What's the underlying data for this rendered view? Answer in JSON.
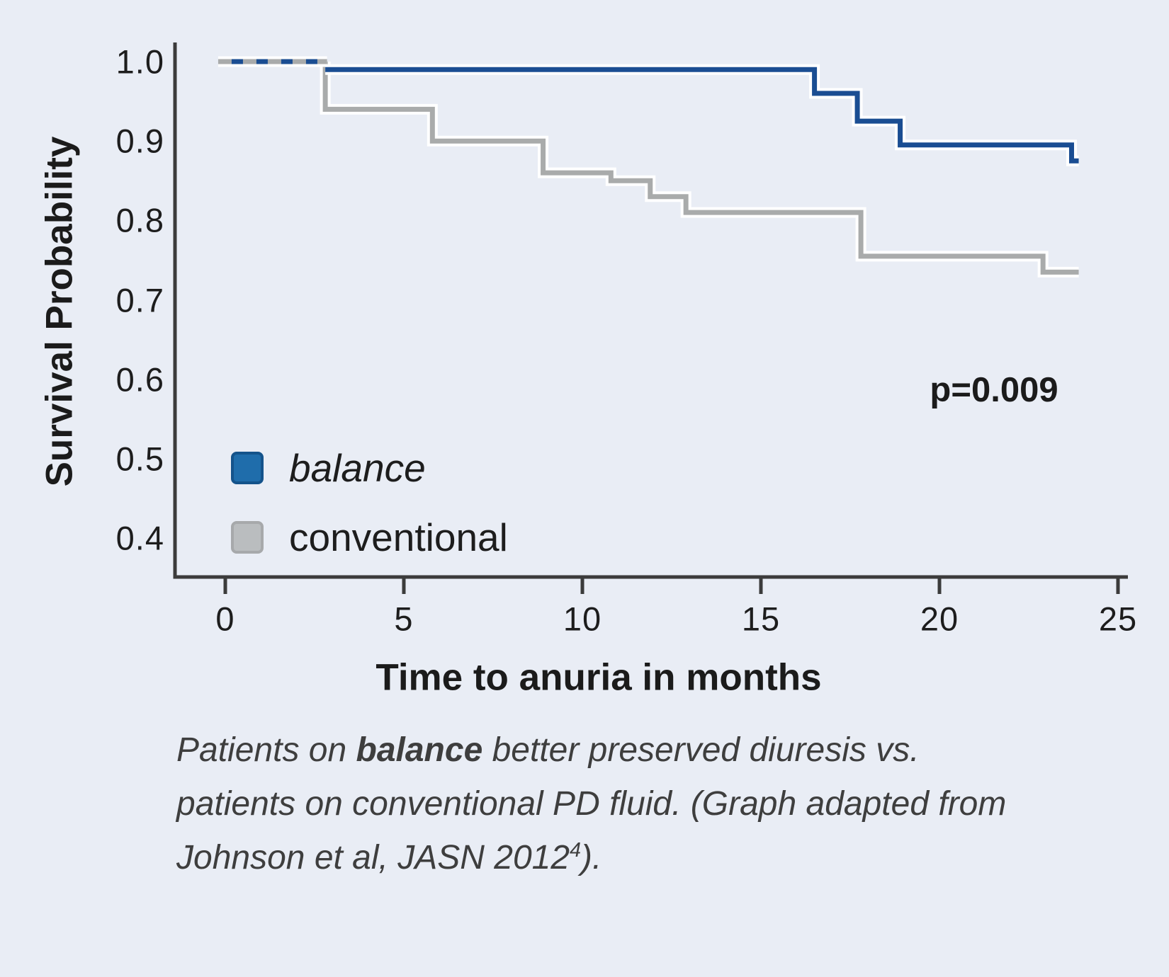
{
  "figure": {
    "background_color": "#e9edf5",
    "p_value_label": "p=0.009"
  },
  "chart_data": {
    "type": "line",
    "subtype": "kaplan-meier-step-curves",
    "title": "",
    "xlabel": "Time to anuria in months",
    "ylabel": "Survival Probability",
    "xlim": [
      0,
      25
    ],
    "x_ticks": [
      0,
      5,
      10,
      15,
      20,
      25
    ],
    "x_tick_labels": [
      "0",
      "5",
      "10",
      "15",
      "20",
      "25"
    ],
    "y_ticks": [
      1.0,
      0.9,
      0.8,
      0.7,
      0.6,
      0.5,
      0.4
    ],
    "y_tick_labels": [
      "1.0",
      "0.9",
      "0.8",
      "0.7",
      "0.6",
      "0.5",
      "0.4"
    ],
    "grid": false,
    "legend_position": "inside-lower-left",
    "annotation": "p=0.009",
    "axis_color": "#3b3b3b",
    "overlap": {
      "note": "both groups overlap at survival 1.0 from month 0 to ~2.8, drawn as alternating blue/gray dashes",
      "from": -0.2,
      "to": 2.85,
      "value": 1.0,
      "dash_colors": [
        "#1a4d92",
        "#a9abab"
      ]
    },
    "series": [
      {
        "name": "conventional",
        "color": "#a9abab",
        "start": [
          2.8,
          1.0
        ],
        "steps": [
          [
            2.8,
            0.94
          ],
          [
            5.8,
            0.9
          ],
          [
            8.9,
            0.86
          ],
          [
            10.8,
            0.85
          ],
          [
            11.9,
            0.83
          ],
          [
            12.9,
            0.81
          ],
          [
            17.8,
            0.755
          ],
          [
            22.9,
            0.735
          ],
          [
            23.9,
            0.735
          ]
        ]
      },
      {
        "name": "balance",
        "color": "#1a4d92",
        "note": "drawn at 0.99 after overlap region for visual separation from the 1.0 dashed overlap line",
        "start": [
          2.8,
          0.99
        ],
        "steps": [
          [
            16.5,
            0.96
          ],
          [
            17.7,
            0.925
          ],
          [
            18.9,
            0.895
          ],
          [
            23.7,
            0.875
          ],
          [
            23.9,
            0.875
          ]
        ]
      }
    ]
  },
  "legend": {
    "items": [
      {
        "label": "balance",
        "swatch_color": "#1f6dab",
        "swatch_border": "#14538b",
        "italic": true
      },
      {
        "label": "conventional",
        "swatch_color": "#babdbf",
        "swatch_border": "#a7a9ab",
        "italic": false
      }
    ]
  },
  "caption": {
    "line1_prefix": "Patients on ",
    "line1_bold": "balance",
    "line1_suffix": " better preserved diuresis vs.",
    "line2": "patients on conventional PD fluid. (Graph adapted from",
    "line3_main": "Johnson et al, JASN 2012",
    "line3_sup": "4",
    "line3_suffix": ")."
  }
}
